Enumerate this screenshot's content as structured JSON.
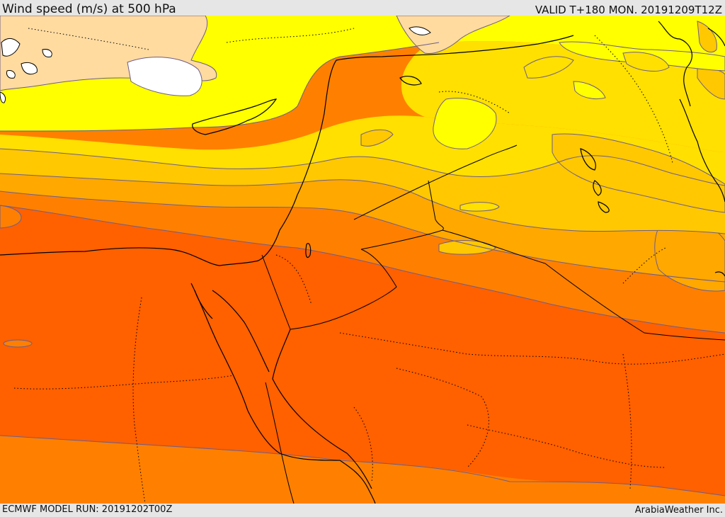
{
  "header": {
    "title": "Wind speed (m/s) at 500 hPa",
    "valid_time": "VALID T+180 MON. 20191209T12Z"
  },
  "footer": {
    "model_run": "ECMWF MODEL RUN: 20191202T00Z",
    "credit": "ArabiaWeather Inc."
  },
  "map": {
    "field": "wind-speed-500hPa",
    "colors": {
      "lightest": "#ffffff",
      "peach": "#ffdba0",
      "yellow": "#ffff00",
      "gold": "#ffe000",
      "amber": "#ffc800",
      "orange": "#ffa800",
      "dark_orange": "#ff8000",
      "red_orange": "#ff6000",
      "contour": "#6e5d8a",
      "coast": "#000000"
    }
  }
}
